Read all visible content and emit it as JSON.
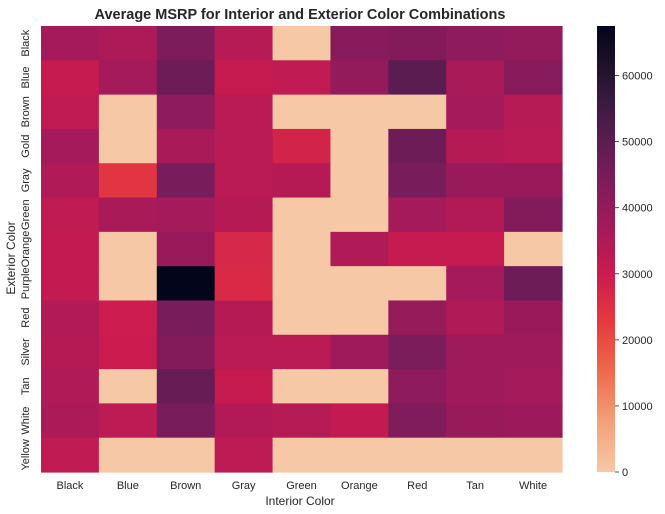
{
  "chart_data": {
    "type": "heatmap",
    "title": "Average MSRP for Interior and Exterior Color Combinations",
    "xlabel": "Interior Color",
    "ylabel": "Exterior Color",
    "x_categories": [
      "Black",
      "Blue",
      "Brown",
      "Gray",
      "Green",
      "Orange",
      "Red",
      "Tan",
      "White"
    ],
    "y_categories": [
      "Black",
      "Blue",
      "Brown",
      "Gold",
      "Gray",
      "Green",
      "Orange",
      "Purple",
      "Red",
      "Silver",
      "Tan",
      "White",
      "Yellow"
    ],
    "values": [
      [
        37000,
        35500,
        44000,
        33500,
        0,
        42000,
        43000,
        41000,
        40000
      ],
      [
        31000,
        37000,
        47000,
        31000,
        32000,
        40000,
        50000,
        36000,
        42000
      ],
      [
        32000,
        0,
        41000,
        33000,
        0,
        0,
        0,
        37000,
        33500
      ],
      [
        37000,
        0,
        36000,
        33000,
        28000,
        0,
        47000,
        34000,
        33000
      ],
      [
        35000,
        24000,
        45000,
        33000,
        34000,
        0,
        45000,
        39000,
        39000
      ],
      [
        32000,
        36000,
        37000,
        34000,
        0,
        0,
        37000,
        34500,
        43000
      ],
      [
        31500,
        0,
        39000,
        27000,
        0,
        35000,
        31000,
        31000,
        0
      ],
      [
        31500,
        0,
        67500,
        26500,
        0,
        0,
        0,
        37000,
        47000
      ],
      [
        34500,
        29500,
        45000,
        34000,
        0,
        0,
        39500,
        35000,
        39000
      ],
      [
        34000,
        30000,
        43000,
        33000,
        33000,
        38000,
        44500,
        38000,
        38000
      ],
      [
        35000,
        0,
        48000,
        31000,
        0,
        0,
        41000,
        38000,
        37000
      ],
      [
        35500,
        32500,
        45000,
        34500,
        33500,
        31500,
        43500,
        39000,
        38500
      ],
      [
        32000,
        0,
        0,
        32500,
        0,
        0,
        0,
        0,
        0
      ]
    ],
    "colorbar": {
      "vmin": 0,
      "vmax": 67500,
      "ticks": [
        0,
        10000,
        20000,
        30000,
        40000,
        50000,
        60000
      ],
      "colormap": "rocket_r",
      "stops": [
        "#f6c8a6",
        "#f2a27b",
        "#ee6b4d",
        "#e63b3e",
        "#cb1b4f",
        "#a11a5b",
        "#781c5b",
        "#4d1c4d",
        "#261530",
        "#03051a"
      ]
    },
    "grid": false
  }
}
